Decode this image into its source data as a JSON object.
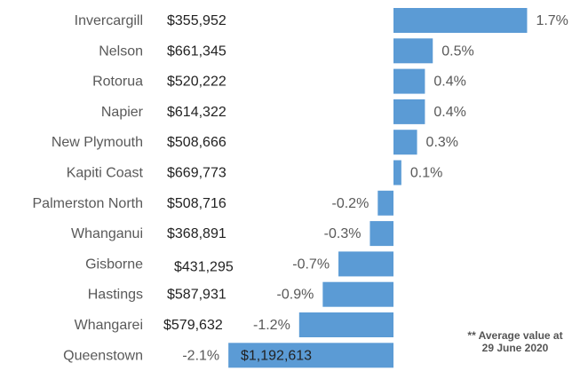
{
  "chart_data": {
    "type": "bar",
    "orientation": "horizontal",
    "categories": [
      "Invercargill",
      "Nelson",
      "Rotorua",
      "Napier",
      "New Plymouth",
      "Kapiti Coast",
      "Palmerston North",
      "Whanganui",
      "Gisborne",
      "Hastings",
      "Whangarei",
      "Queenstown"
    ],
    "average_values": [
      "$355,952",
      "$661,345",
      "$520,222",
      "$614,322",
      "$508,666",
      "$669,773",
      "$508,716",
      "$368,891",
      "$431,295",
      "$587,931",
      "$579,632",
      "$1,192,613"
    ],
    "values": [
      1.7,
      0.5,
      0.4,
      0.4,
      0.3,
      0.1,
      -0.2,
      -0.3,
      -0.7,
      -0.9,
      -1.2,
      -2.1
    ],
    "value_labels": [
      "1.7%",
      "0.5%",
      "0.4%",
      "0.4%",
      "0.3%",
      "0.1%",
      "-0.2%",
      "-0.3%",
      "-0.7%",
      "-0.9%",
      "-1.2%",
      "-2.1%"
    ],
    "bar_color": "#5b9bd5",
    "label_color": "#595959",
    "grid": false,
    "legend": "none"
  },
  "footnote": {
    "line1": "** Average value at",
    "line2": "29 June 2020"
  }
}
